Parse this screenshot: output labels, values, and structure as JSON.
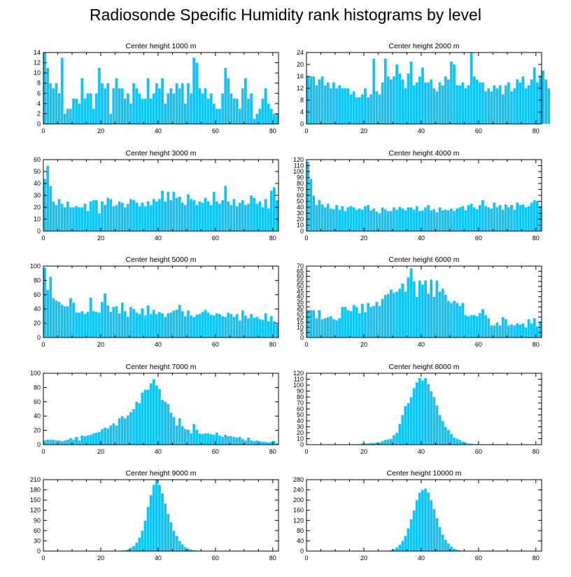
{
  "title": "Radiosonde Specific Humidity rank histograms by level",
  "colors": {
    "bar": "#10c2f5",
    "bar_edge": "#ffffff",
    "axis": "#000000"
  },
  "chart_data": [
    {
      "type": "bar",
      "title": "Center height 1000 m",
      "xlim": [
        0,
        82
      ],
      "ylim": [
        0,
        14
      ],
      "xticks": [
        0,
        20,
        40,
        60,
        80
      ],
      "yticks": [
        0,
        2,
        4,
        6,
        8,
        10,
        12,
        14
      ],
      "values": [
        14,
        11,
        8,
        7,
        8,
        6,
        13,
        2,
        3,
        3,
        5,
        5,
        4,
        9,
        5,
        6,
        6,
        3,
        6,
        11,
        8,
        7,
        8,
        2,
        7,
        9,
        7,
        7,
        5,
        6,
        4,
        8,
        7,
        6,
        5,
        5,
        9,
        5,
        6,
        8,
        7,
        9,
        4,
        6,
        7,
        6,
        8,
        7,
        8,
        4,
        8,
        6,
        13,
        12,
        7,
        6,
        7,
        5,
        6,
        4,
        3,
        3,
        6,
        11,
        9,
        6,
        5,
        5,
        3,
        7,
        9,
        5,
        6,
        1,
        2,
        3,
        5,
        7,
        4,
        3,
        2,
        2
      ]
    },
    {
      "type": "bar",
      "title": "Center height 2000 m",
      "xlim": [
        0,
        82
      ],
      "ylim": [
        0,
        24
      ],
      "xticks": [
        0,
        20,
        40,
        60,
        80
      ],
      "yticks": [
        0,
        4,
        8,
        12,
        16,
        20,
        24
      ],
      "values": [
        16,
        16,
        16,
        13,
        15,
        16,
        13,
        14,
        12,
        14,
        12,
        13,
        12,
        12,
        12,
        10,
        11,
        9,
        9,
        10,
        12,
        9,
        10,
        22,
        11,
        10,
        14,
        22,
        16,
        15,
        16,
        20,
        17,
        15,
        12,
        17,
        21,
        13,
        14,
        16,
        19,
        14,
        14,
        15,
        12,
        11,
        14,
        13,
        16,
        15,
        21,
        20,
        13,
        13,
        14,
        12,
        13,
        24,
        16,
        15,
        14,
        14,
        11,
        12,
        11,
        13,
        12,
        13,
        10,
        13,
        14,
        11,
        12,
        15,
        14,
        16,
        12,
        13,
        15,
        19,
        14,
        16,
        18,
        15,
        12
      ]
    },
    {
      "type": "bar",
      "title": "Center height 3000 m",
      "xlim": [
        0,
        82
      ],
      "ylim": [
        0,
        60
      ],
      "xticks": [
        0,
        20,
        40,
        60,
        80
      ],
      "yticks": [
        0,
        10,
        20,
        30,
        40,
        50,
        60
      ],
      "values": [
        44,
        55,
        38,
        25,
        22,
        27,
        23,
        20,
        25,
        20,
        20,
        21,
        20,
        20,
        23,
        17,
        25,
        26,
        26,
        15,
        25,
        22,
        28,
        27,
        21,
        22,
        25,
        24,
        20,
        23,
        27,
        26,
        24,
        21,
        24,
        21,
        25,
        22,
        27,
        25,
        27,
        34,
        25,
        33,
        26,
        33,
        28,
        29,
        24,
        22,
        31,
        27,
        26,
        22,
        25,
        24,
        28,
        25,
        22,
        33,
        25,
        23,
        26,
        38,
        25,
        22,
        27,
        21,
        24,
        26,
        22,
        23,
        30,
        28,
        23,
        25,
        20,
        27,
        19,
        34,
        37,
        26
      ]
    },
    {
      "type": "bar",
      "title": "Center height 4000 m",
      "xlim": [
        0,
        82
      ],
      "ylim": [
        0,
        120
      ],
      "xticks": [
        0,
        20,
        40,
        60,
        80
      ],
      "yticks": [
        0,
        10,
        20,
        30,
        40,
        50,
        60,
        70,
        80,
        90,
        100,
        110,
        120
      ],
      "values": [
        117,
        88,
        60,
        44,
        52,
        45,
        40,
        46,
        38,
        37,
        44,
        36,
        42,
        34,
        40,
        42,
        40,
        36,
        38,
        36,
        42,
        44,
        35,
        38,
        33,
        30,
        40,
        37,
        34,
        34,
        40,
        36,
        41,
        38,
        35,
        40,
        40,
        36,
        42,
        34,
        35,
        40,
        44,
        35,
        37,
        32,
        40,
        35,
        36,
        35,
        38,
        34,
        38,
        40,
        42,
        35,
        44,
        46,
        40,
        37,
        44,
        52,
        42,
        40,
        38,
        48,
        40,
        44,
        36,
        45,
        40,
        44,
        36,
        48,
        44,
        45,
        40,
        42,
        48,
        52,
        51,
        42
      ]
    },
    {
      "type": "bar",
      "title": "Center height 5000 m",
      "xlim": [
        0,
        82
      ],
      "ylim": [
        0,
        100
      ],
      "xticks": [
        0,
        20,
        40,
        60,
        80
      ],
      "yticks": [
        0,
        20,
        40,
        60,
        80,
        100
      ],
      "values": [
        98,
        67,
        85,
        55,
        52,
        50,
        46,
        44,
        44,
        55,
        49,
        35,
        35,
        37,
        33,
        36,
        56,
        37,
        36,
        35,
        50,
        62,
        45,
        36,
        43,
        44,
        34,
        49,
        37,
        29,
        43,
        40,
        35,
        33,
        41,
        31,
        45,
        33,
        39,
        33,
        36,
        34,
        29,
        34,
        35,
        38,
        39,
        46,
        37,
        30,
        38,
        31,
        29,
        32,
        33,
        36,
        39,
        35,
        32,
        31,
        34,
        33,
        30,
        29,
        35,
        33,
        29,
        33,
        24,
        38,
        31,
        27,
        33,
        28,
        29,
        26,
        25,
        34,
        23,
        30,
        23,
        19
      ]
    },
    {
      "type": "bar",
      "title": "Center height 6000 m",
      "xlim": [
        0,
        82
      ],
      "ylim": [
        0,
        70
      ],
      "xticks": [
        0,
        20,
        40,
        60,
        80
      ],
      "yticks": [
        0,
        5,
        10,
        15,
        20,
        25,
        30,
        35,
        40,
        45,
        50,
        55,
        60,
        65,
        70
      ],
      "values": [
        27,
        27,
        27,
        19,
        27,
        18,
        19,
        20,
        21,
        18,
        17,
        19,
        30,
        30,
        27,
        26,
        32,
        30,
        24,
        33,
        25,
        34,
        30,
        31,
        35,
        31,
        38,
        42,
        43,
        47,
        44,
        45,
        48,
        53,
        45,
        59,
        68,
        55,
        40,
        56,
        52,
        56,
        43,
        57,
        40,
        56,
        45,
        48,
        42,
        36,
        34,
        36,
        34,
        31,
        34,
        22,
        21,
        22,
        22,
        21,
        24,
        28,
        22,
        19,
        12,
        12,
        15,
        12,
        20,
        18,
        12,
        13,
        12,
        14,
        13,
        14,
        10,
        18,
        14,
        19,
        11,
        16
      ]
    },
    {
      "type": "bar",
      "title": "Center height 7000 m",
      "xlim": [
        0,
        82
      ],
      "ylim": [
        0,
        100
      ],
      "xticks": [
        0,
        20,
        40,
        60,
        80
      ],
      "yticks": [
        0,
        20,
        40,
        60,
        80,
        100
      ],
      "values": [
        6,
        7,
        7,
        7,
        6,
        6,
        5,
        6,
        7,
        9,
        7,
        11,
        6,
        13,
        12,
        13,
        14,
        16,
        17,
        18,
        22,
        24,
        23,
        27,
        30,
        27,
        37,
        40,
        37,
        41,
        46,
        50,
        60,
        58,
        73,
        77,
        77,
        86,
        92,
        83,
        78,
        63,
        60,
        57,
        45,
        39,
        27,
        37,
        26,
        22,
        21,
        16,
        29,
        21,
        16,
        15,
        16,
        16,
        15,
        14,
        17,
        13,
        11,
        14,
        12,
        12,
        11,
        10,
        11,
        8,
        6,
        10,
        6,
        5,
        6,
        5,
        4,
        4,
        3,
        4,
        5,
        2
      ]
    },
    {
      "type": "bar",
      "title": "Center height 8000 m",
      "xlim": [
        0,
        82
      ],
      "ylim": [
        0,
        120
      ],
      "xticks": [
        0,
        20,
        40,
        60,
        80
      ],
      "yticks": [
        0,
        10,
        20,
        30,
        40,
        50,
        60,
        70,
        80,
        90,
        100,
        110,
        120
      ],
      "values": [
        0,
        0,
        0,
        0,
        0,
        0,
        0,
        0,
        0,
        0,
        0,
        0,
        0,
        0,
        0,
        0,
        1,
        1,
        1,
        2,
        2,
        2,
        3,
        3,
        4,
        4,
        6,
        8,
        9,
        10,
        16,
        20,
        35,
        50,
        65,
        70,
        80,
        95,
        105,
        112,
        108,
        112,
        102,
        90,
        80,
        66,
        50,
        40,
        30,
        25,
        18,
        12,
        10,
        8,
        5,
        4,
        2,
        2,
        1,
        1,
        0,
        0,
        0,
        0,
        0,
        0,
        0,
        0,
        0,
        0,
        0,
        0,
        0,
        0,
        0,
        0,
        0,
        0,
        0,
        0,
        0,
        0
      ]
    },
    {
      "type": "bar",
      "title": "Center height 9000 m",
      "xlim": [
        0,
        82
      ],
      "ylim": [
        0,
        210
      ],
      "xticks": [
        0,
        20,
        40,
        60,
        80
      ],
      "yticks": [
        0,
        30,
        60,
        90,
        120,
        150,
        180,
        210
      ],
      "values": [
        0,
        0,
        0,
        0,
        0,
        0,
        0,
        0,
        0,
        0,
        0,
        0,
        0,
        0,
        0,
        0,
        0,
        0,
        0,
        0,
        0,
        0,
        0,
        0,
        0,
        0,
        1,
        2,
        3,
        5,
        10,
        15,
        25,
        40,
        60,
        90,
        130,
        165,
        195,
        210,
        195,
        170,
        140,
        110,
        85,
        60,
        45,
        30,
        20,
        12,
        8,
        5,
        3,
        2,
        1,
        0,
        0,
        0,
        0,
        0,
        0,
        0,
        0,
        0,
        0,
        0,
        0,
        0,
        0,
        0,
        0,
        0,
        0,
        0,
        0,
        0,
        0,
        0,
        0,
        0,
        0,
        0
      ]
    },
    {
      "type": "bar",
      "title": "Center height 10000 m",
      "xlim": [
        0,
        82
      ],
      "ylim": [
        0,
        280
      ],
      "xticks": [
        0,
        20,
        40,
        60,
        80
      ],
      "yticks": [
        0,
        40,
        80,
        120,
        160,
        200,
        240,
        280
      ],
      "values": [
        0,
        0,
        0,
        0,
        0,
        0,
        0,
        0,
        0,
        0,
        0,
        0,
        0,
        0,
        0,
        0,
        0,
        0,
        0,
        0,
        0,
        0,
        0,
        0,
        0,
        0,
        0,
        1,
        2,
        4,
        8,
        15,
        25,
        40,
        60,
        90,
        125,
        160,
        200,
        230,
        240,
        245,
        230,
        200,
        165,
        130,
        95,
        65,
        45,
        30,
        18,
        10,
        6,
        3,
        2,
        1,
        0,
        0,
        0,
        0,
        0,
        0,
        0,
        0,
        0,
        0,
        0,
        0,
        0,
        0,
        0,
        0,
        0,
        0,
        0,
        0,
        0,
        0,
        0,
        0,
        0,
        0
      ]
    }
  ]
}
